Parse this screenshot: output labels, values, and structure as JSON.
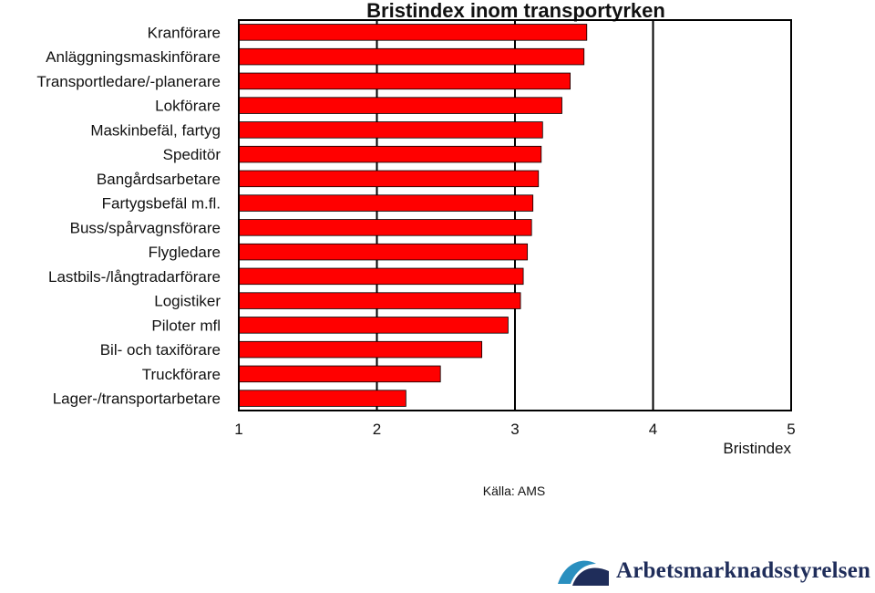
{
  "chart_data": {
    "type": "bar",
    "orientation": "horizontal",
    "title": "Bristindex inom transportyrken",
    "xlabel": "Bristindex",
    "xlim": [
      1,
      5
    ],
    "xticks": [
      "1",
      "2",
      "3",
      "4",
      "5"
    ],
    "bar_color": "#ff0000",
    "categories": [
      "Kranförare",
      "Anläggningsmaskinförare",
      "Transportledare/-planerare",
      "Lokförare",
      "Maskinbefäl, fartyg",
      "Speditör",
      "Bangårdsarbetare",
      "Fartygsbefäl m.fl.",
      "Buss/spårvagnsförare",
      "Flygledare",
      "Lastbils-/långtradarförare",
      "Logistiker",
      "Piloter mfl",
      "Bil- och taxiförare",
      "Truckförare",
      "Lager-/transportarbetare"
    ],
    "values": [
      3.52,
      3.5,
      3.4,
      3.34,
      3.2,
      3.19,
      3.17,
      3.13,
      3.12,
      3.09,
      3.06,
      3.04,
      2.95,
      2.76,
      2.46,
      2.21
    ]
  },
  "source": "Källa: AMS",
  "logo": {
    "text": "Arbetsmarknadsstyrelsen",
    "color": "#1f2d5a",
    "accent": "#2a8fbf"
  }
}
